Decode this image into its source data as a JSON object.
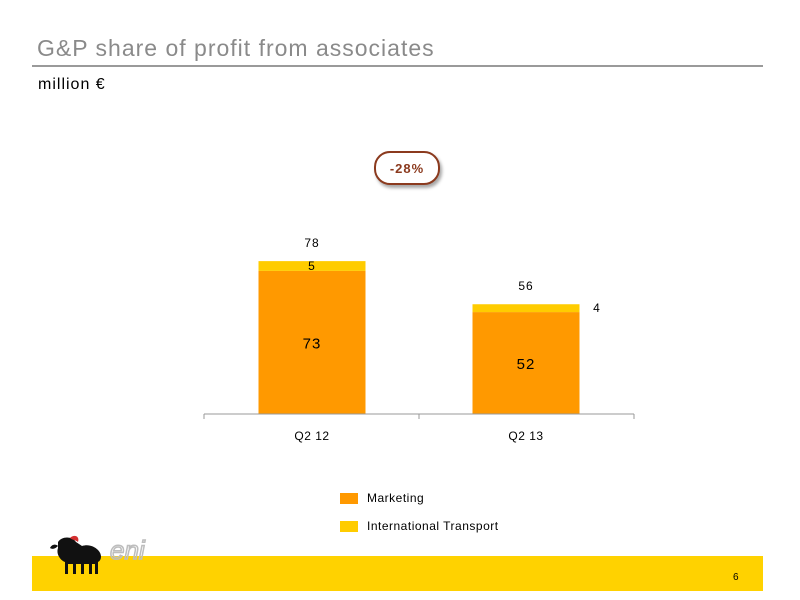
{
  "header": {
    "title": "G&P share of profit from associates",
    "subtitle": "million €"
  },
  "badge": {
    "label": "-28%"
  },
  "chart_data": {
    "type": "bar",
    "stacked": true,
    "categories": [
      "Q2 12",
      "Q2 13"
    ],
    "series": [
      {
        "name": "Marketing",
        "values": [
          73,
          52
        ],
        "color": "#ff9900"
      },
      {
        "name": "International Transport",
        "values": [
          5,
          4
        ],
        "color": "#ffcc00"
      }
    ],
    "totals": [
      78,
      56
    ],
    "ylim": [
      0,
      100
    ],
    "grid": false,
    "legend": "bottom"
  },
  "legend": {
    "items": [
      {
        "label": "Marketing",
        "color": "#ff9900"
      },
      {
        "label": "International Transport",
        "color": "#ffcc00"
      }
    ]
  },
  "footer": {
    "page_number": "6",
    "bar_color": "#ffd200",
    "logo": {
      "text": "eni",
      "icon": "six-legged-dog-icon"
    }
  }
}
